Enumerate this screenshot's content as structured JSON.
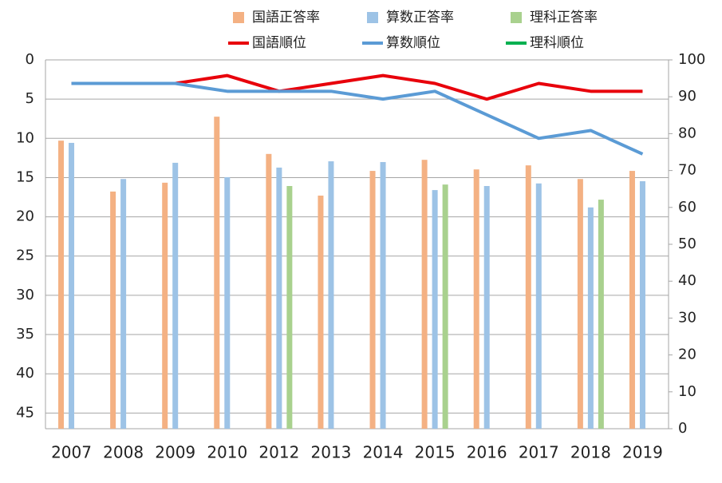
{
  "chart_data": {
    "type": "bar",
    "categories": [
      "2007",
      "2008",
      "2009",
      "2010",
      "2012",
      "2013",
      "2014",
      "2015",
      "2016",
      "2017",
      "2018",
      "2019"
    ],
    "series": [
      {
        "name": "国語正答率",
        "type": "bar",
        "axis": "y2",
        "color": "#f4b183",
        "values": [
          78.1,
          64.3,
          66.7,
          84.6,
          74.5,
          63.2,
          69.9,
          72.9,
          70.3,
          71.4,
          67.7,
          69.9
        ]
      },
      {
        "name": "算数正答率",
        "type": "bar",
        "axis": "y2",
        "color": "#9dc3e6",
        "values": [
          77.5,
          67.7,
          72.1,
          68.2,
          70.8,
          72.5,
          72.3,
          64.7,
          65.8,
          66.5,
          60.0,
          67.1
        ]
      },
      {
        "name": "理科正答率",
        "type": "bar",
        "axis": "y2",
        "color": "#a9d18e",
        "values": [
          null,
          null,
          null,
          null,
          65.8,
          null,
          null,
          66.2,
          null,
          null,
          62.1,
          null
        ]
      },
      {
        "name": "国語順位",
        "type": "line",
        "color": "#e8000b",
        "values": [
          3,
          3,
          3,
          2,
          4,
          3,
          2,
          3,
          5,
          3,
          4,
          4
        ]
      },
      {
        "name": "算数順位",
        "type": "line",
        "color": "#5b9bd5",
        "values": [
          3,
          3,
          3,
          4,
          4,
          4,
          5,
          4,
          7,
          10,
          9,
          12
        ]
      },
      {
        "name": "理科順位",
        "type": "line",
        "color": "#00b050",
        "values": [
          null,
          null,
          null,
          null,
          null,
          null,
          null,
          null,
          null,
          null,
          null,
          null
        ]
      }
    ],
    "ylim": [
      0,
      47
    ],
    "y_inverted": true,
    "yticks": [
      0,
      5,
      10,
      15,
      20,
      25,
      30,
      35,
      40,
      45
    ],
    "y2lim": [
      0,
      100
    ],
    "y2ticks": [
      0,
      10,
      20,
      30,
      40,
      50,
      60,
      70,
      80,
      90,
      100
    ],
    "grid": true,
    "legend": "top"
  }
}
